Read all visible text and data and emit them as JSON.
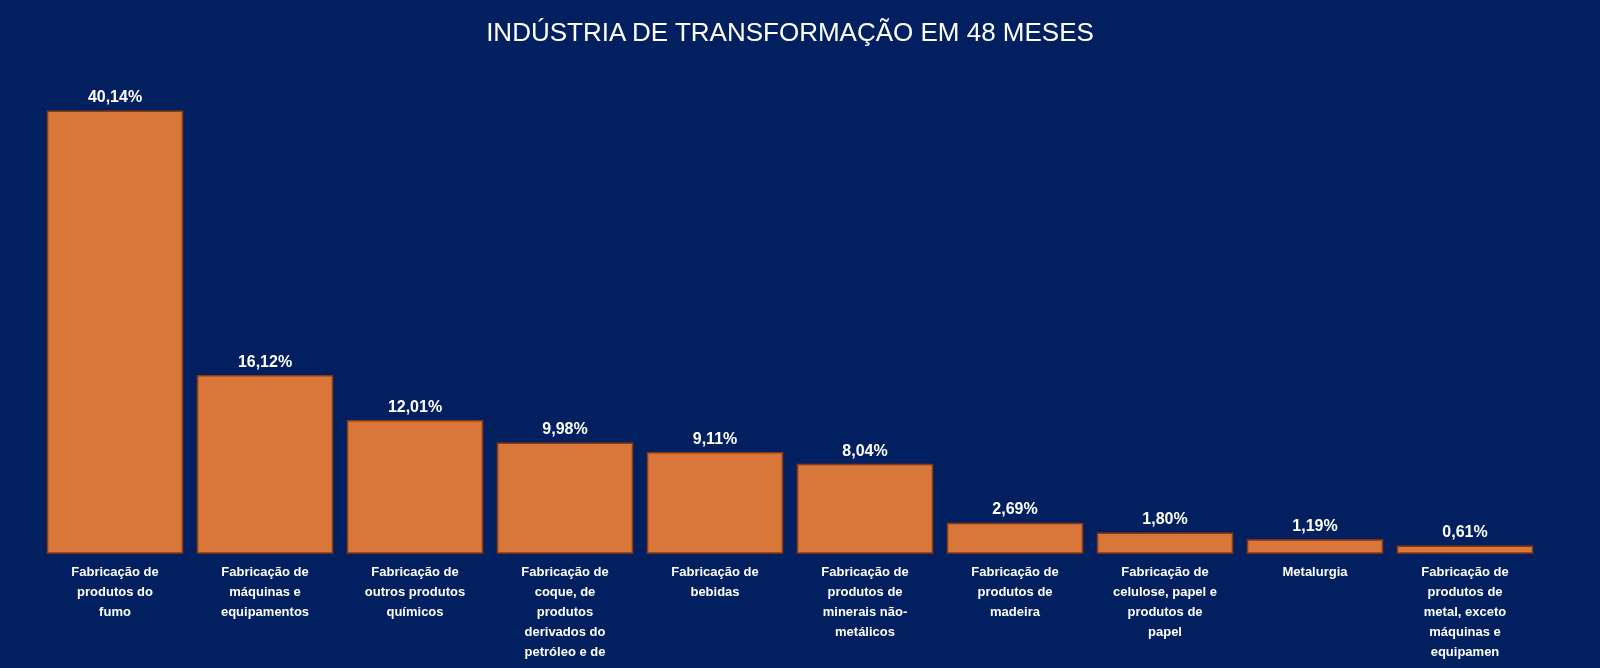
{
  "chart_data": {
    "type": "bar",
    "title": "INDÚSTRIA DE TRANSFORMAÇÃO EM 48 MESES",
    "categories": [
      "Fabricação de\nprodutos do\nfumo",
      "Fabricação de\nmáquinas e\nequipamentos",
      "Fabricação de\noutros produtos\nquímicos",
      "Fabricação de\ncoque, de\nprodutos\nderivados do\npetróleo e de",
      "Fabricação de\nbebidas",
      "Fabricação de\nprodutos de\nminerais não-\nmetálicos",
      "Fabricação de\nprodutos de\nmadeira",
      "Fabricação de\ncelulose, papel e\nprodutos de\npapel",
      "Metalurgia",
      "Fabricação de\nprodutos de\nmetal, exceto\nmáquinas e\nequipamen"
    ],
    "values": [
      40.14,
      16.12,
      12.01,
      9.98,
      9.11,
      8.04,
      2.69,
      1.8,
      1.19,
      0.61
    ],
    "value_labels": [
      "40,14%",
      "16,12%",
      "12,01%",
      "9,98%",
      "9,11%",
      "8,04%",
      "2,69%",
      "1,80%",
      "1,19%",
      "0,61%"
    ],
    "color": "#d9763a",
    "grid": false
  }
}
